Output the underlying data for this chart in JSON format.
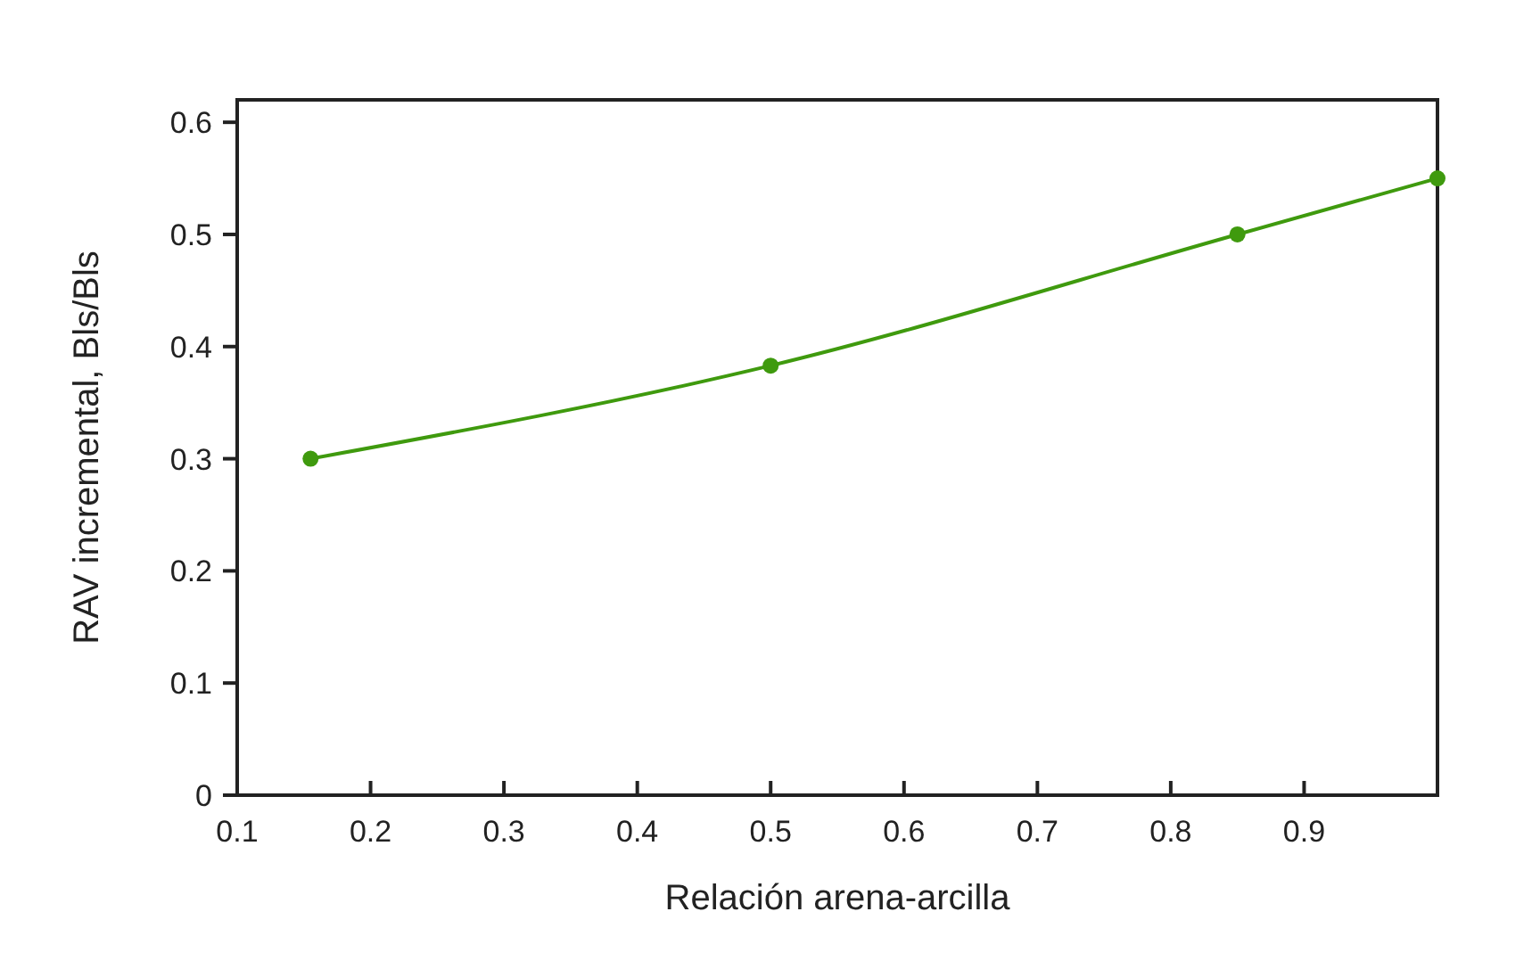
{
  "chart_data": {
    "type": "line",
    "xlabel": "Relación arena-arcilla",
    "ylabel": "RAV incremental, Bls/Bls",
    "x": [
      0.155,
      0.5,
      0.85,
      1.0
    ],
    "series": [
      {
        "color": "#3f9a0e",
        "values": [
          0.3,
          0.383,
          0.5,
          0.55
        ]
      }
    ],
    "xlim": [
      0.1,
      1.0
    ],
    "xticks": [
      0.1,
      0.2,
      0.3,
      0.4,
      0.5,
      0.6,
      0.7,
      0.8,
      0.9
    ],
    "ylim": [
      0,
      0.62
    ],
    "yticks": [
      0,
      0.1,
      0.2,
      0.3,
      0.4,
      0.5,
      0.6
    ],
    "marker": "circle",
    "line_style": "solid",
    "grid": false
  }
}
